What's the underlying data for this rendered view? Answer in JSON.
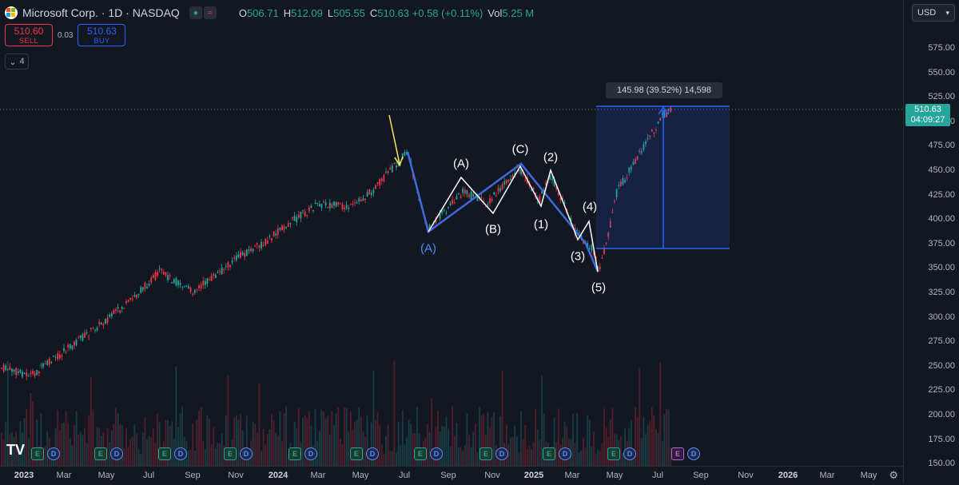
{
  "header": {
    "title": "Microsoft Corp. · 1D · NASDAQ",
    "ohlc": [
      {
        "label": "O",
        "value": "506.71"
      },
      {
        "label": "H",
        "value": "512.09"
      },
      {
        "label": "L",
        "value": "505.55"
      },
      {
        "label": "C",
        "value": "510.63 +0.58 (+0.11%)"
      },
      {
        "label": "Vol",
        "value": "5.25 M"
      }
    ]
  },
  "trade": {
    "sell_price": "510.60",
    "sell_label": "SELL",
    "spread": "0.03",
    "buy_price": "510.63",
    "buy_label": "BUY"
  },
  "indicators_collapse": {
    "count": "4"
  },
  "currency": {
    "label": "USD"
  },
  "last_price": {
    "price": "510.63",
    "countdown": "04:09:27"
  },
  "measure": {
    "text": "145.98 (39.52%) 14,598"
  },
  "price_axis": [
    "575.00",
    "550.00",
    "525.00",
    "500.00",
    "475.00",
    "450.00",
    "425.00",
    "400.00",
    "375.00",
    "350.00",
    "325.00",
    "300.00",
    "275.00",
    "250.00",
    "225.00",
    "200.00",
    "175.00",
    "150.00"
  ],
  "time_axis": [
    {
      "label": "2023",
      "bold": true
    },
    {
      "label": "Mar"
    },
    {
      "label": "May"
    },
    {
      "label": "Jul"
    },
    {
      "label": "Sep"
    },
    {
      "label": "Nov"
    },
    {
      "label": "2024",
      "bold": true
    },
    {
      "label": "Mar"
    },
    {
      "label": "May"
    },
    {
      "label": "Jul"
    },
    {
      "label": "Sep"
    },
    {
      "label": "Nov"
    },
    {
      "label": "2025",
      "bold": true
    },
    {
      "label": "Mar"
    },
    {
      "label": "May"
    },
    {
      "label": "Jul"
    },
    {
      "label": "Sep"
    },
    {
      "label": "Nov"
    },
    {
      "label": "2026",
      "bold": true
    },
    {
      "label": "Mar"
    },
    {
      "label": "May"
    }
  ],
  "wave_labels": {
    "a_blue": "(A)",
    "a_white": "(A)",
    "b_white": "(B)",
    "c_white": "(C)",
    "w1": "(1)",
    "w2": "(2)",
    "w3": "(3)",
    "w4": "(4)",
    "w5": "(5)"
  },
  "events": [
    "E",
    "D",
    "E",
    "D",
    "E",
    "D",
    "E",
    "D",
    "E",
    "D",
    "E",
    "D",
    "E",
    "D",
    "E",
    "D",
    "E",
    "D",
    "E",
    "D",
    "E",
    "D"
  ],
  "colors": {
    "up": "#26a69a",
    "down": "#f23645",
    "accent": "#2962ff",
    "arrow": "#f5e663"
  },
  "icons": {
    "settings": "gear-icon",
    "logo": "tradingview-logo"
  }
}
